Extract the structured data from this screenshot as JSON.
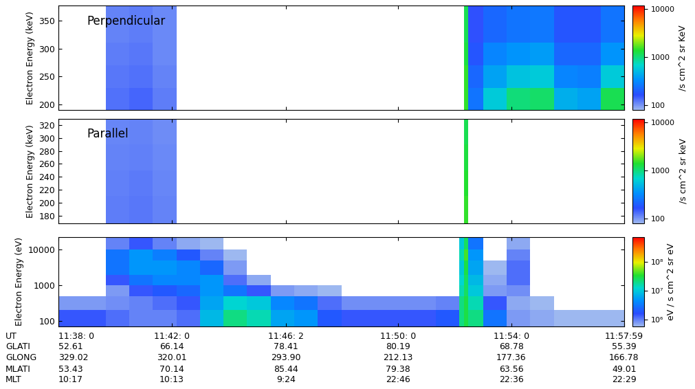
{
  "chart_data": [
    {
      "type": "heatmap",
      "title": "Perpendicular",
      "ylabel": "Electron Energy (keV)",
      "x_edges": [
        0,
        50,
        100,
        150,
        200,
        250,
        300,
        350,
        400,
        450,
        500,
        550,
        600,
        650,
        700,
        750,
        800,
        850,
        860,
        868,
        900,
        950,
        1000,
        1050,
        1100,
        1150,
        1200
      ],
      "y_edges": [
        190,
        230,
        270,
        310,
        377
      ],
      "cells": [
        [
          70,
          70,
          130,
          140,
          120,
          70,
          70,
          70,
          70,
          70,
          70,
          70,
          70,
          70,
          70,
          70,
          70,
          70,
          1500,
          250,
          600,
          1000,
          1100,
          450,
          400,
          1200
        ],
        [
          70,
          70,
          125,
          130,
          115,
          70,
          70,
          70,
          70,
          70,
          70,
          70,
          70,
          70,
          70,
          70,
          70,
          70,
          1500,
          220,
          400,
          550,
          600,
          300,
          280,
          600
        ],
        [
          70,
          70,
          120,
          125,
          110,
          70,
          70,
          70,
          70,
          70,
          70,
          70,
          70,
          70,
          70,
          70,
          70,
          70,
          1300,
          180,
          300,
          350,
          380,
          220,
          220,
          350
        ],
        [
          70,
          70,
          115,
          120,
          110,
          70,
          70,
          70,
          70,
          70,
          70,
          70,
          70,
          70,
          70,
          70,
          70,
          70,
          1200,
          160,
          220,
          250,
          260,
          180,
          180,
          250
        ]
      ],
      "xlim": [
        0,
        1199
      ],
      "ylim": [
        190,
        377
      ],
      "xticks": [
        0,
        240,
        482,
        720,
        960,
        1199
      ],
      "yticks": [
        200,
        250,
        300,
        350
      ],
      "tick_labels": "y",
      "colorbar": {
        "label": "/s cm^2 sr KeV",
        "range": [
          80,
          12000
        ],
        "ticks": [
          100,
          1000,
          10000
        ]
      }
    },
    {
      "type": "heatmap",
      "title": "Parallel",
      "ylabel": "Electron Energy (keV)",
      "x_edges": [
        0,
        50,
        100,
        150,
        200,
        250,
        300,
        350,
        400,
        450,
        500,
        550,
        600,
        650,
        700,
        750,
        800,
        850,
        860,
        868,
        900,
        950,
        1000,
        1050,
        1100,
        1150,
        1200
      ],
      "y_edges": [
        168,
        210,
        250,
        290,
        330
      ],
      "cells": [
        [
          70,
          70,
          120,
          125,
          115,
          70,
          70,
          70,
          70,
          70,
          70,
          70,
          70,
          70,
          70,
          70,
          70,
          70,
          1500,
          70,
          70,
          70,
          70,
          70,
          70,
          70
        ],
        [
          70,
          70,
          118,
          122,
          112,
          70,
          70,
          70,
          70,
          70,
          70,
          70,
          70,
          70,
          70,
          70,
          70,
          70,
          1400,
          70,
          70,
          70,
          70,
          70,
          70,
          70
        ],
        [
          70,
          70,
          115,
          118,
          110,
          70,
          70,
          70,
          70,
          70,
          70,
          70,
          70,
          70,
          70,
          70,
          70,
          70,
          1300,
          70,
          70,
          70,
          70,
          70,
          70,
          70
        ],
        [
          70,
          70,
          112,
          115,
          108,
          70,
          70,
          70,
          70,
          70,
          70,
          70,
          70,
          70,
          70,
          70,
          70,
          70,
          1200,
          70,
          70,
          70,
          70,
          70,
          70,
          70
        ]
      ],
      "xlim": [
        0,
        1199
      ],
      "ylim": [
        168,
        330
      ],
      "xticks": [
        0,
        240,
        482,
        720,
        960,
        1199
      ],
      "yticks": [
        180,
        200,
        220,
        240,
        260,
        280,
        300,
        320
      ],
      "tick_labels": "y",
      "colorbar": {
        "label": "/s cm^2 sr keV",
        "range": [
          80,
          12000
        ],
        "ticks": [
          100,
          1000,
          10000
        ]
      }
    },
    {
      "type": "heatmap",
      "ylabel": "Electron Energy (eV)",
      "log": "y",
      "x_edges": [
        0,
        50,
        100,
        150,
        200,
        250,
        300,
        350,
        400,
        450,
        500,
        550,
        600,
        650,
        700,
        750,
        800,
        850,
        860,
        868,
        900,
        950,
        1000,
        1050,
        1100,
        1150,
        1200
      ],
      "y_edges": [
        70,
        200,
        500,
        1000,
        2000,
        5000,
        10000,
        23000
      ],
      "cells": [
        [
          1500000.0,
          1500000.0,
          1200000.0,
          1000000.0,
          1000000.0,
          1200000.0,
          8000000.0,
          20000000.0,
          15000000.0,
          6000000.0,
          5000000.0,
          2000000.0,
          1500000.0,
          1500000.0,
          1500000.0,
          1500000.0,
          2000000.0,
          20000000.0,
          30000000.0,
          20000000.0,
          3000000.0,
          800000.0,
          700000.0,
          600000.0,
          600000.0,
          600000.0
        ],
        [
          800000.0,
          800000.0,
          900000.0,
          1000000.0,
          1200000.0,
          1500000.0,
          6000000.0,
          12000000.0,
          10000000.0,
          4000000.0,
          3000000.0,
          1200000.0,
          900000.0,
          900000.0,
          900000.0,
          900000.0,
          1000000.0,
          20000000.0,
          30000000.0,
          15000000.0,
          1500000.0,
          700000.0,
          600000.0,
          500000.0,
          500000.0,
          500000.0
        ],
        [
          500000.0,
          500000.0,
          800000.0,
          1500000.0,
          2000000.0,
          2500000.0,
          5000000.0,
          3000000.0,
          1500000.0,
          800000.0,
          700000.0,
          600000.0,
          500000.0,
          500000.0,
          500000.0,
          500000.0,
          500000.0,
          15000000.0,
          25000000.0,
          10000000.0,
          800000.0,
          900000.0,
          500000.0,
          500000.0,
          500000.0,
          500000.0
        ],
        [
          500000.0,
          500000.0,
          1500000.0,
          3000000.0,
          4000000.0,
          4000000.0,
          5000000.0,
          1200000.0,
          700000.0,
          500000.0,
          500000.0,
          500000.0,
          500000.0,
          500000.0,
          500000.0,
          500000.0,
          500000.0,
          12000000.0,
          25000000.0,
          8000000.0,
          700000.0,
          1200000.0,
          500000.0,
          500000.0,
          500000.0,
          500000.0
        ],
        [
          500000.0,
          500000.0,
          3000000.0,
          5000000.0,
          5000000.0,
          4000000.0,
          2500000.0,
          800000.0,
          500000.0,
          500000.0,
          500000.0,
          500000.0,
          500000.0,
          500000.0,
          500000.0,
          500000.0,
          500000.0,
          10000000.0,
          30000000.0,
          6000000.0,
          600000.0,
          1200000.0,
          500000.0,
          500000.0,
          500000.0,
          500000.0
        ],
        [
          500000.0,
          500000.0,
          3000000.0,
          5000000.0,
          3500000.0,
          2000000.0,
          1000000.0,
          600000.0,
          500000.0,
          500000.0,
          500000.0,
          500000.0,
          500000.0,
          500000.0,
          500000.0,
          500000.0,
          500000.0,
          15000000.0,
          40000000.0,
          5000000.0,
          500000.0,
          1000000.0,
          500000.0,
          500000.0,
          500000.0,
          500000.0
        ],
        [
          500000.0,
          500000.0,
          1000000.0,
          1500000.0,
          1000000.0,
          700000.0,
          600000.0,
          500000.0,
          500000.0,
          500000.0,
          500000.0,
          500000.0,
          500000.0,
          500000.0,
          500000.0,
          500000.0,
          500000.0,
          10000000.0,
          25000000.0,
          3000000.0,
          500000.0,
          700000.0,
          500000.0,
          500000.0,
          500000.0,
          500000.0
        ]
      ],
      "xlim": [
        0,
        1199
      ],
      "ylim": [
        70,
        23000
      ],
      "xticks": [
        0,
        240,
        482,
        720,
        960,
        1199
      ],
      "yticks": [
        100,
        1000,
        10000
      ],
      "tick_labels": "y",
      "colorbar": {
        "label": "eV / s cm^2 sr eV",
        "range": [
          600000,
          700000000
        ],
        "ticks": [
          {
            "value": 1000000,
            "label": "10⁶"
          },
          {
            "value": 10000000,
            "label": "10⁷"
          },
          {
            "value": 100000000,
            "label": "10⁸"
          }
        ]
      }
    }
  ],
  "ephemeris": {
    "x": [
      0,
      240,
      482,
      720,
      960,
      1199
    ],
    "rows": [
      {
        "label": "UT",
        "values": [
          "11:38: 0",
          "11:42: 0",
          "11:46: 2",
          "11:50: 0",
          "11:54: 0",
          "11:57:59"
        ]
      },
      {
        "label": "GLATI",
        "values": [
          "52.61",
          "66.14",
          "78.41",
          "80.19",
          "68.78",
          "55.39"
        ]
      },
      {
        "label": "GLONG",
        "values": [
          "329.02",
          "320.01",
          "293.90",
          "212.13",
          "177.36",
          "166.78"
        ]
      },
      {
        "label": "MLATI",
        "values": [
          "53.43",
          "70.14",
          "85.44",
          "79.38",
          "63.56",
          "49.01"
        ]
      },
      {
        "label": "MLT",
        "values": [
          "10:17",
          "10:13",
          "9:24",
          "22:46",
          "22:36",
          "22:29"
        ]
      }
    ]
  }
}
